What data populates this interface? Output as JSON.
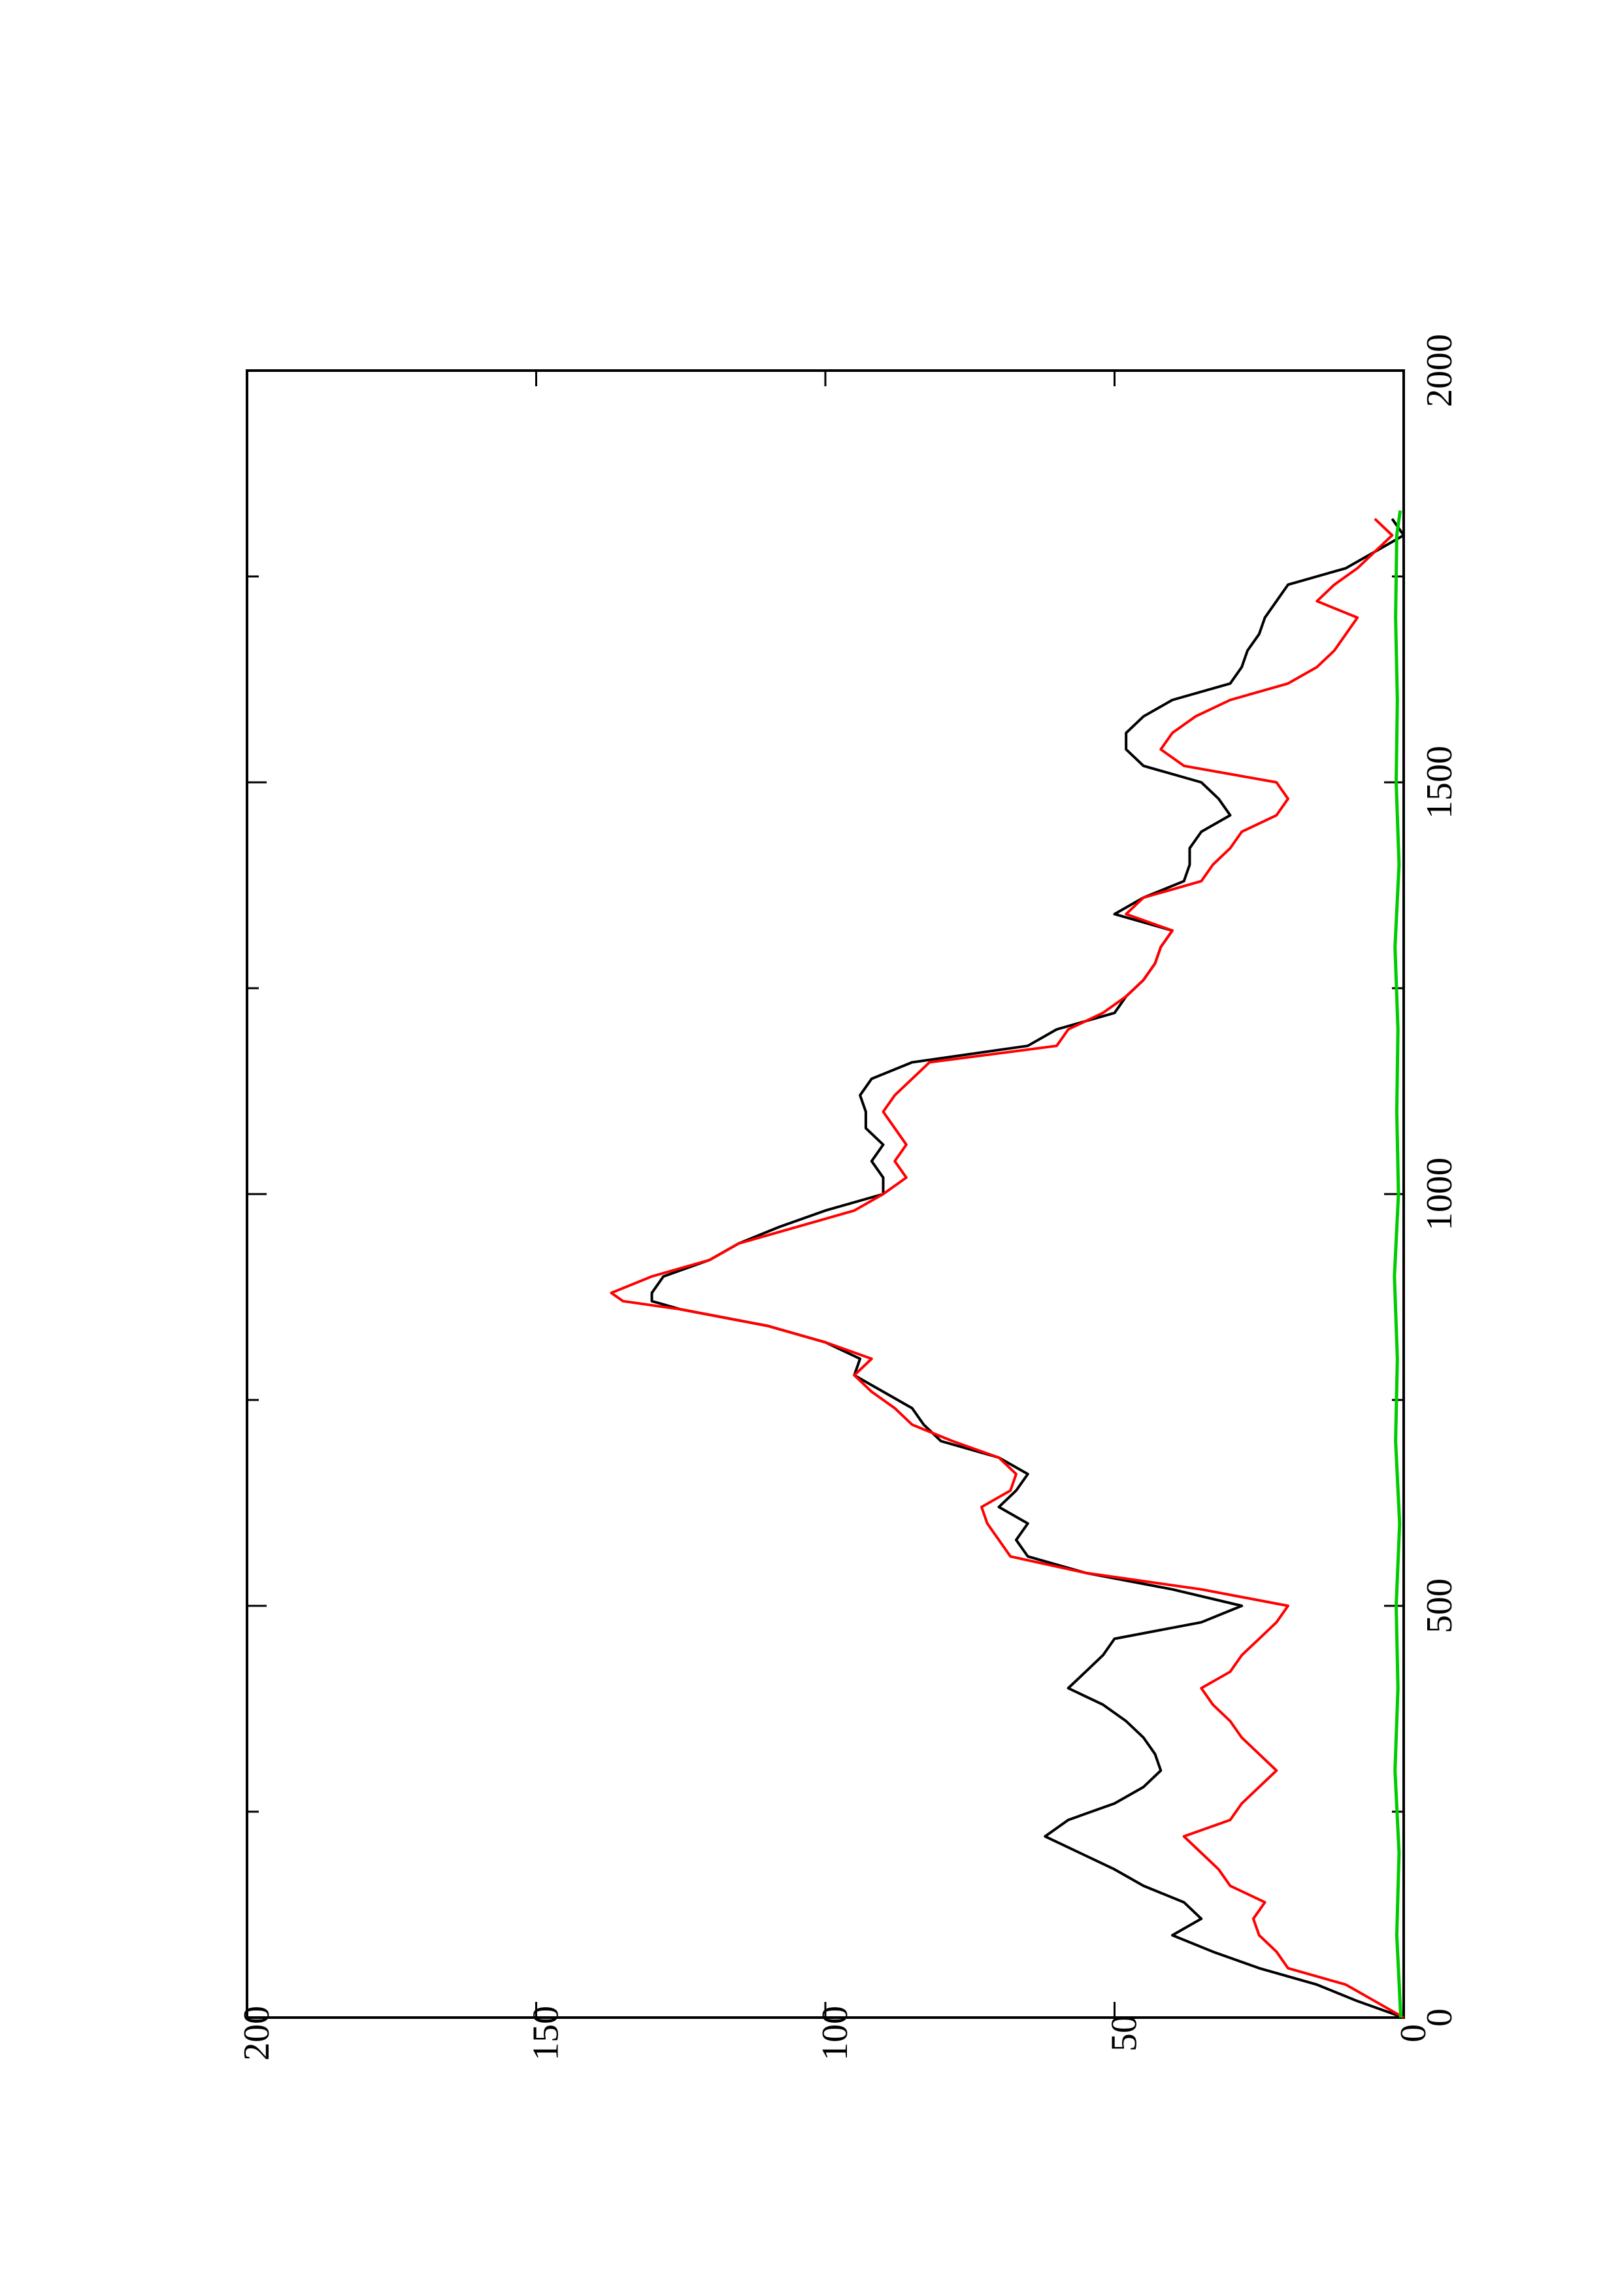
{
  "chart_data": {
    "type": "line",
    "orientation": "rotated-90-ccw",
    "title": "",
    "xlabel": "",
    "ylabel": "",
    "xlim": [
      0,
      2000
    ],
    "ylim": [
      0,
      200
    ],
    "x_ticks": [
      0,
      500,
      1000,
      1500,
      2000
    ],
    "y_ticks": [
      0,
      50,
      100,
      150,
      200
    ],
    "x_tick_labels": [
      "0",
      "500",
      "1000",
      "1500",
      "2000"
    ],
    "y_tick_labels": [
      "0",
      "50",
      "100",
      "150",
      "200"
    ],
    "grid": false,
    "legend": "none",
    "series": [
      {
        "color": "#000000",
        "x": [
          0,
          20,
          40,
          60,
          80,
          100,
          120,
          140,
          160,
          180,
          200,
          220,
          240,
          260,
          280,
          300,
          320,
          340,
          360,
          380,
          400,
          420,
          440,
          460,
          480,
          500,
          520,
          540,
          560,
          580,
          600,
          620,
          640,
          660,
          680,
          700,
          720,
          740,
          760,
          780,
          800,
          820,
          840,
          860,
          870,
          880,
          900,
          920,
          940,
          960,
          980,
          1000,
          1020,
          1040,
          1060,
          1080,
          1100,
          1120,
          1140,
          1160,
          1180,
          1200,
          1220,
          1240,
          1260,
          1280,
          1300,
          1320,
          1340,
          1360,
          1380,
          1400,
          1420,
          1440,
          1460,
          1480,
          1500,
          1520,
          1540,
          1560,
          1580,
          1600,
          1620,
          1640,
          1660,
          1680,
          1700,
          1720,
          1740,
          1760,
          1780,
          1800,
          1820
        ],
        "y": [
          0,
          8,
          15,
          25,
          33,
          40,
          35,
          38,
          45,
          50,
          56,
          62,
          58,
          50,
          45,
          42,
          43,
          45,
          48,
          52,
          58,
          55,
          52,
          50,
          35,
          28,
          40,
          55,
          65,
          67,
          65,
          70,
          67,
          65,
          70,
          80,
          83,
          85,
          90,
          95,
          94,
          100,
          110,
          125,
          130,
          130,
          128,
          120,
          115,
          108,
          100,
          90,
          90,
          92,
          90,
          93,
          93,
          94,
          92,
          85,
          65,
          60,
          50,
          48,
          45,
          43,
          42,
          40,
          50,
          45,
          38,
          37,
          37,
          35,
          30,
          32,
          35,
          45,
          48,
          48,
          45,
          40,
          30,
          28,
          27,
          25,
          24,
          22,
          20,
          10,
          5,
          0,
          2
        ]
      },
      {
        "color": "#ff0000",
        "x": [
          0,
          20,
          40,
          60,
          80,
          100,
          120,
          140,
          160,
          180,
          200,
          220,
          240,
          260,
          280,
          300,
          320,
          340,
          360,
          380,
          400,
          420,
          440,
          460,
          480,
          500,
          520,
          540,
          560,
          580,
          600,
          620,
          640,
          660,
          680,
          700,
          720,
          740,
          760,
          780,
          800,
          820,
          840,
          860,
          870,
          880,
          900,
          920,
          940,
          960,
          980,
          1000,
          1020,
          1040,
          1060,
          1080,
          1100,
          1120,
          1140,
          1160,
          1180,
          1200,
          1220,
          1240,
          1260,
          1280,
          1300,
          1320,
          1340,
          1360,
          1380,
          1400,
          1420,
          1440,
          1460,
          1480,
          1500,
          1520,
          1540,
          1560,
          1580,
          1600,
          1620,
          1640,
          1660,
          1680,
          1700,
          1720,
          1740,
          1760,
          1780,
          1800,
          1820
        ],
        "y": [
          0,
          5,
          10,
          20,
          22,
          25,
          26,
          24,
          30,
          32,
          35,
          38,
          30,
          28,
          25,
          22,
          25,
          28,
          30,
          33,
          35,
          30,
          28,
          25,
          22,
          20,
          35,
          55,
          68,
          70,
          72,
          73,
          68,
          67,
          70,
          78,
          85,
          88,
          92,
          95,
          92,
          100,
          110,
          125,
          135,
          137,
          130,
          120,
          115,
          105,
          95,
          90,
          86,
          88,
          86,
          88,
          90,
          88,
          85,
          82,
          60,
          58,
          52,
          48,
          45,
          43,
          42,
          40,
          48,
          45,
          35,
          33,
          30,
          28,
          22,
          20,
          22,
          38,
          42,
          40,
          36,
          30,
          20,
          15,
          12,
          10,
          8,
          15,
          12,
          8,
          5,
          2,
          5
        ]
      },
      {
        "color": "#00cc00",
        "x": [
          0,
          100,
          200,
          300,
          400,
          500,
          600,
          700,
          800,
          900,
          1000,
          1100,
          1200,
          1300,
          1400,
          1500,
          1600,
          1700,
          1800,
          1830
        ],
        "y": [
          0.5,
          1.2,
          0.8,
          1.5,
          1,
          1.3,
          0.7,
          1.4,
          1.1,
          1.6,
          0.9,
          1.2,
          1.0,
          1.5,
          0.8,
          1.3,
          1.1,
          1.4,
          1.2,
          0.6
        ]
      }
    ]
  }
}
